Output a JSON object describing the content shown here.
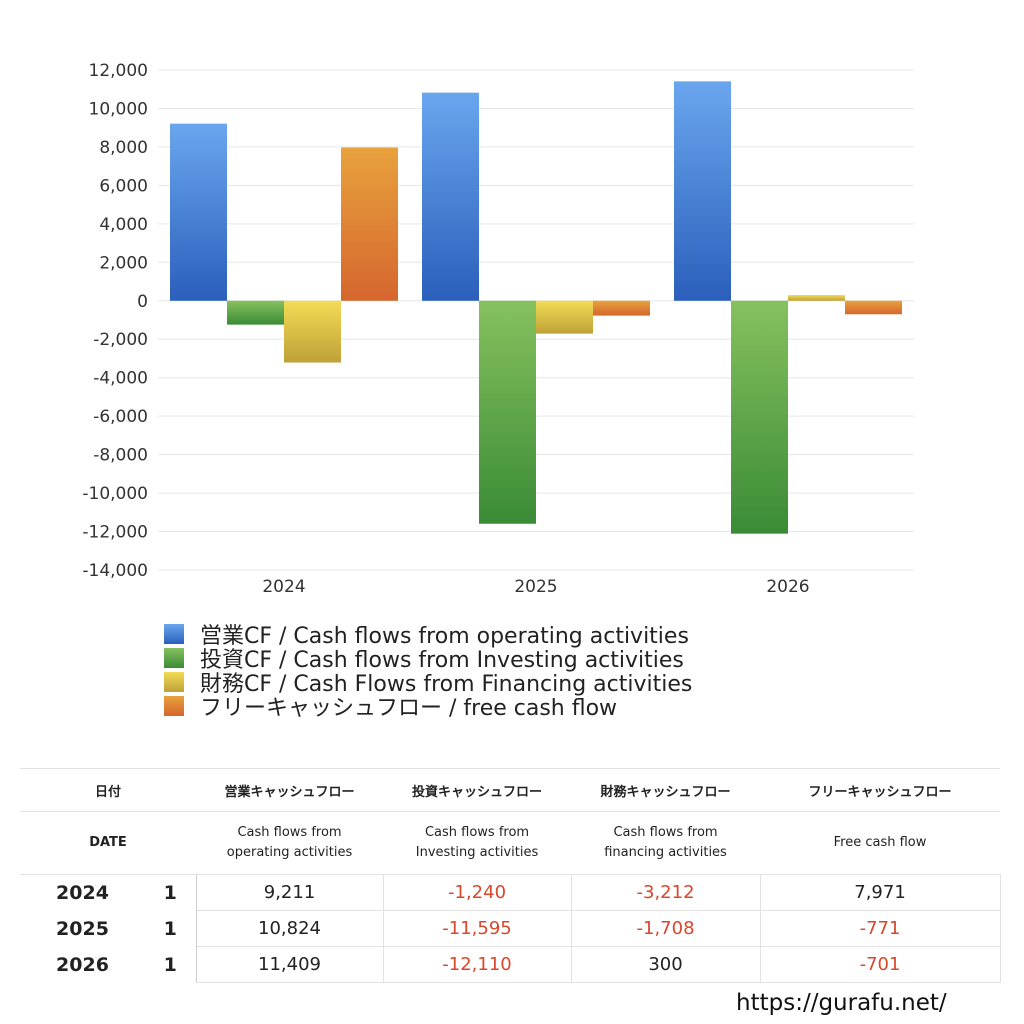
{
  "chart_data": {
    "type": "bar",
    "categories": [
      "2024",
      "2025",
      "2026"
    ],
    "ylim": [
      -14000,
      12000
    ],
    "yticks": [
      12000,
      10000,
      8000,
      6000,
      4000,
      2000,
      0,
      -2000,
      -4000,
      -6000,
      -8000,
      -10000,
      -12000,
      -14000
    ],
    "ytick_labels": [
      "12,000",
      "10,000",
      "8,000",
      "6,000",
      "4,000",
      "2,000",
      "0",
      "-2,000",
      "-4,000",
      "-6,000",
      "-8,000",
      "-10,000",
      "-12,000",
      "-14,000"
    ],
    "grid": true,
    "legend_position": "bottom-left",
    "series": [
      {
        "name": "営業CF / Cash flows from operating activities",
        "values": [
          9211,
          10824,
          11409
        ],
        "color_top": "#6aa6ee",
        "color_bottom": "#2b5fbb"
      },
      {
        "name": "投資CF / Cash flows from Investing activities",
        "values": [
          -1240,
          -11595,
          -12110
        ],
        "color_top": "#86c15e",
        "color_bottom": "#3a8b36"
      },
      {
        "name": "財務CF / Cash Flows from Financing activities",
        "values": [
          -3212,
          -1708,
          300
        ],
        "color_top": "#f3dc56",
        "color_bottom": "#bfa138"
      },
      {
        "name": "フリーキャッシュフロー / free cash flow",
        "values": [
          7971,
          -771,
          -701
        ],
        "color_top": "#e8a23d",
        "color_bottom": "#d5662e"
      }
    ]
  },
  "table": {
    "headers_jp": [
      "日付",
      "営業キャッシュフロー",
      "投資キャッシュフロー",
      "財務キャッシュフロー",
      "フリーキャッシュフロー"
    ],
    "headers_en": {
      "date": "DATE",
      "operating": [
        "Cash flows from",
        "operating activities"
      ],
      "investing": [
        "Cash flows from",
        "Investing activities"
      ],
      "financing": [
        "Cash flows from",
        "financing activities"
      ],
      "free": [
        "Free cash flow"
      ]
    },
    "rows": [
      {
        "year": "2024",
        "q": "1",
        "operating": "9,211",
        "investing": "-1,240",
        "financing": "-3,212",
        "free": "7,971"
      },
      {
        "year": "2025",
        "q": "1",
        "operating": "10,824",
        "investing": "-11,595",
        "financing": "-1,708",
        "free": "-771"
      },
      {
        "year": "2026",
        "q": "1",
        "operating": "11,409",
        "investing": "-12,110",
        "financing": "300",
        "free": "-701"
      }
    ]
  },
  "site": "https://gurafu.net/"
}
